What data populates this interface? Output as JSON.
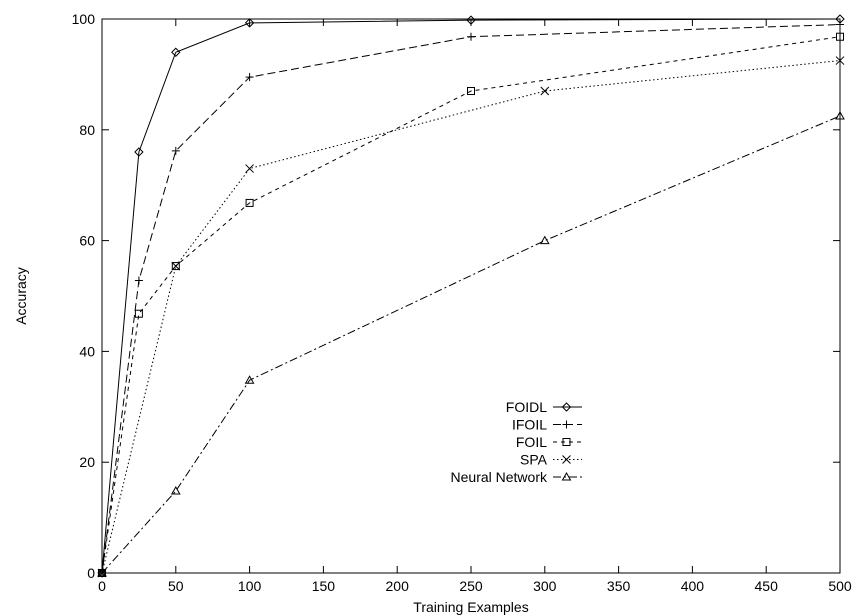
{
  "chart_data": {
    "type": "line",
    "xlabel": "Training Examples",
    "ylabel": "Accuracy",
    "xlim": [
      0,
      500
    ],
    "ylim": [
      0,
      100
    ],
    "xticks": [
      0,
      50,
      100,
      150,
      200,
      250,
      300,
      350,
      400,
      450,
      500
    ],
    "yticks": [
      0,
      20,
      40,
      60,
      80,
      100
    ],
    "grid": false,
    "legend_position": "lower-right",
    "series": [
      {
        "name": "FOIDL",
        "marker": "diamond",
        "dash": "solid",
        "x": [
          0,
          25,
          50,
          100,
          250,
          500
        ],
        "y": [
          0,
          76,
          94,
          99.3,
          99.8,
          100
        ]
      },
      {
        "name": "IFOIL",
        "marker": "plus",
        "dash": "dashed",
        "x": [
          0,
          25,
          50,
          100,
          250,
          500
        ],
        "y": [
          0,
          52.8,
          76.2,
          89.5,
          96.8,
          99
        ]
      },
      {
        "name": "FOIL",
        "marker": "square",
        "dash": "short-dashed",
        "x": [
          0,
          25,
          50,
          100,
          250,
          500
        ],
        "y": [
          0,
          46.8,
          55.4,
          66.8,
          87,
          96.8
        ]
      },
      {
        "name": "SPA",
        "marker": "cross",
        "dash": "dotted",
        "x": [
          0,
          50,
          100,
          300,
          500
        ],
        "y": [
          0,
          55.4,
          73,
          87,
          92.5
        ]
      },
      {
        "name": "Neural Network",
        "marker": "triangle",
        "dash": "dash-dot",
        "x": [
          0,
          50,
          100,
          300,
          500
        ],
        "y": [
          0,
          14.8,
          34.8,
          60,
          82.5
        ]
      }
    ]
  }
}
